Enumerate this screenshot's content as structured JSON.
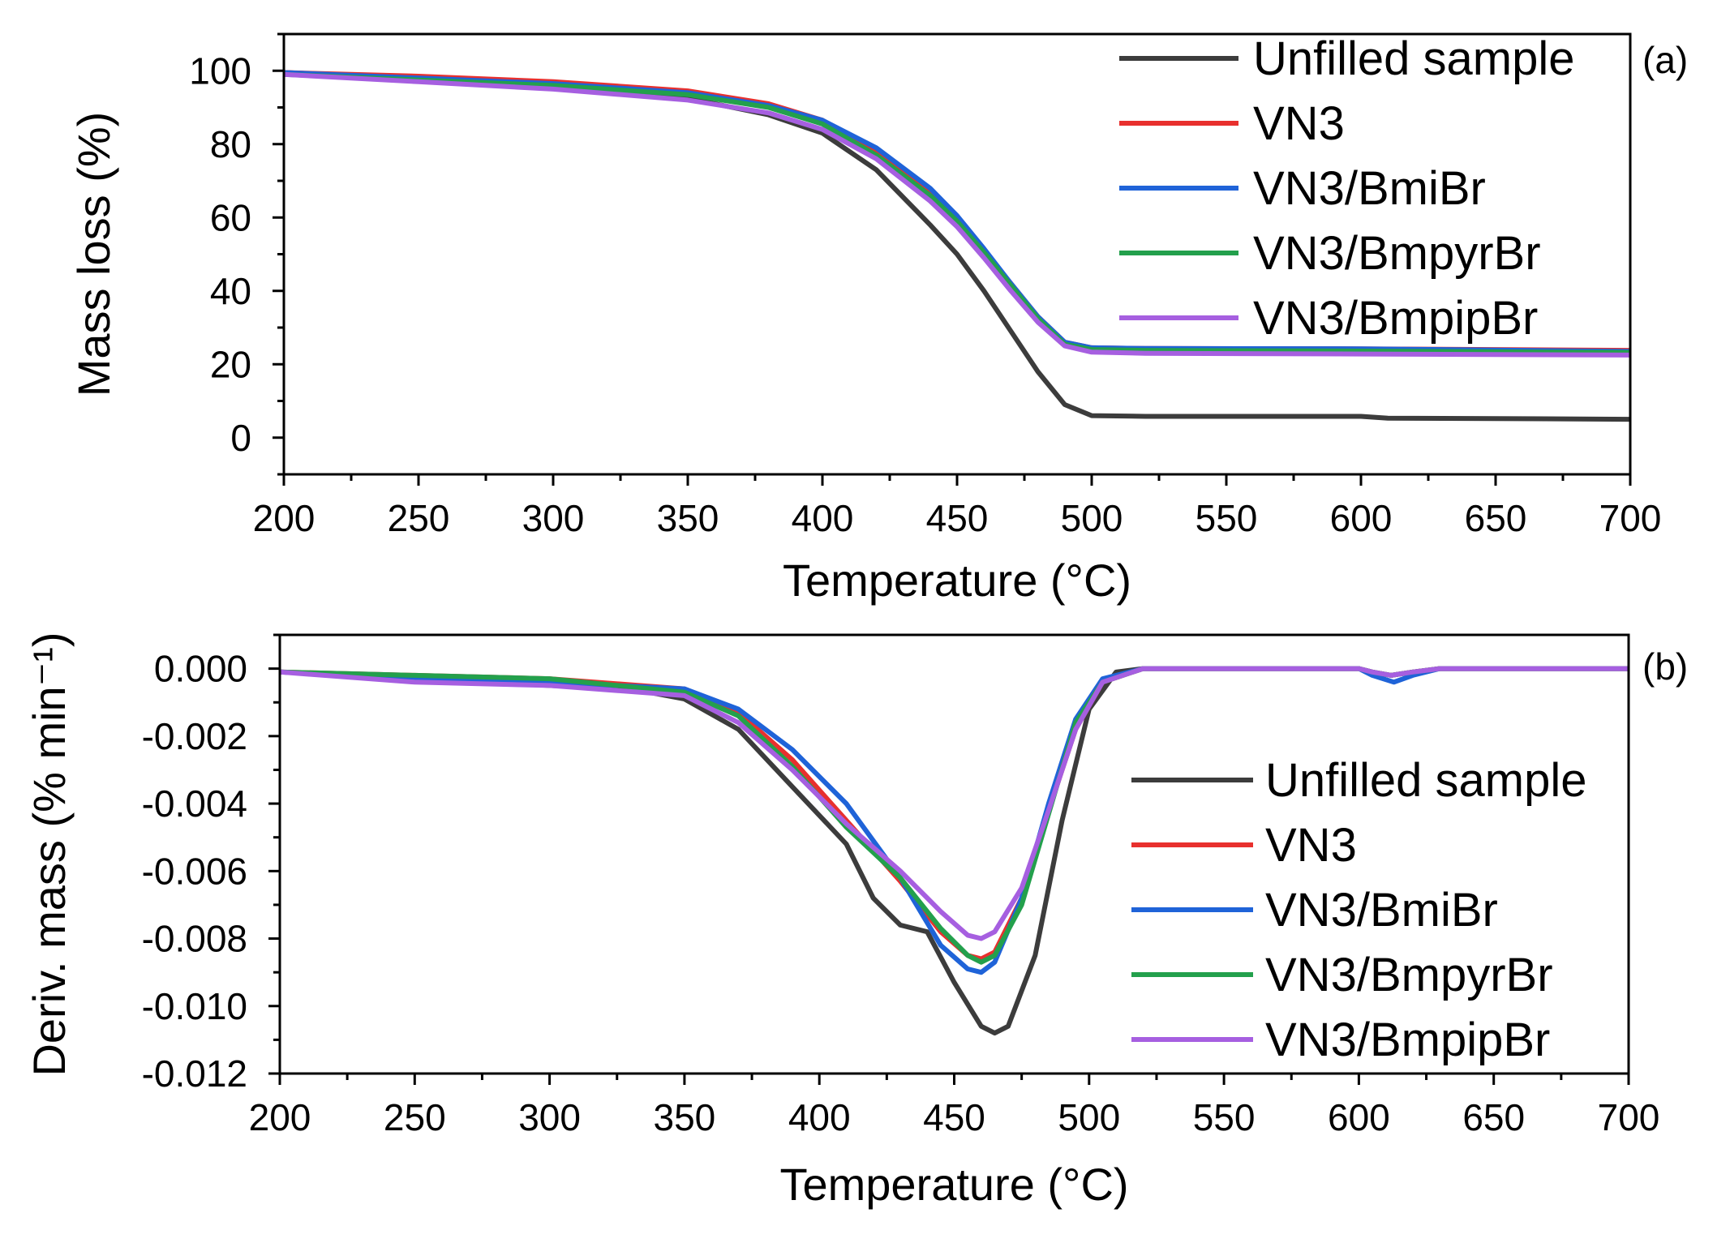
{
  "chart_data": [
    {
      "type": "line",
      "panel_label": "(a)",
      "xlabel": "Temperature (°C)",
      "ylabel": "Mass loss (%)",
      "xlim": [
        200,
        700
      ],
      "ylim": [
        -10,
        110
      ],
      "xticks": [
        200,
        250,
        300,
        350,
        400,
        450,
        500,
        550,
        600,
        650,
        700
      ],
      "yticks": [
        0,
        20,
        40,
        60,
        80,
        100
      ],
      "legend_position": "top-right",
      "series": [
        {
          "name": "Unfilled sample",
          "color": "#3c3c3c",
          "x": [
            200,
            250,
            300,
            350,
            380,
            400,
            420,
            440,
            450,
            460,
            470,
            480,
            490,
            500,
            520,
            600,
            610,
            650,
            700
          ],
          "y": [
            99.5,
            98,
            96,
            92.5,
            88,
            83,
            73,
            58,
            50,
            40,
            29,
            18,
            9,
            6,
            5.8,
            5.8,
            5.3,
            5.2,
            5
          ]
        },
        {
          "name": "VN3",
          "color": "#e8302e",
          "x": [
            200,
            250,
            300,
            350,
            380,
            400,
            420,
            440,
            450,
            460,
            470,
            480,
            490,
            500,
            520,
            600,
            700
          ],
          "y": [
            99.5,
            98.5,
            97,
            94.5,
            91,
            86.5,
            78,
            67,
            60,
            51,
            42,
            33,
            26,
            24.5,
            24.3,
            24.2,
            23.8
          ]
        },
        {
          "name": "VN3/BmiBr",
          "color": "#1f63d8",
          "x": [
            200,
            250,
            300,
            350,
            380,
            400,
            420,
            440,
            450,
            460,
            470,
            480,
            490,
            500,
            520,
            600,
            700
          ],
          "y": [
            99.5,
            98,
            96.5,
            94,
            90.5,
            86.5,
            79,
            68,
            60.5,
            51.5,
            42,
            33,
            26,
            24.5,
            24.3,
            24.2,
            23.5
          ]
        },
        {
          "name": "VN3/BmpyrBr",
          "color": "#23a04c",
          "x": [
            200,
            250,
            300,
            350,
            380,
            400,
            420,
            440,
            450,
            460,
            470,
            480,
            490,
            500,
            520,
            600,
            700
          ],
          "y": [
            99,
            97.5,
            96,
            93.5,
            90,
            85.5,
            77,
            66,
            59,
            50.5,
            41.5,
            32.5,
            25.5,
            24,
            23.8,
            23.6,
            23.2
          ]
        },
        {
          "name": "VN3/BmpipBr",
          "color": "#a65fe0",
          "x": [
            200,
            250,
            300,
            350,
            380,
            400,
            420,
            440,
            450,
            460,
            470,
            480,
            490,
            500,
            520,
            600,
            700
          ],
          "y": [
            99,
            97,
            95,
            92,
            88.5,
            84,
            76,
            64.5,
            57.5,
            49,
            40,
            31.5,
            25,
            23.3,
            23,
            22.8,
            22.5
          ]
        }
      ]
    },
    {
      "type": "line",
      "panel_label": "(b)",
      "xlabel": "Temperature (°C)",
      "ylabel": "Deriv. mass (% min⁻¹)",
      "xlim": [
        200,
        700
      ],
      "ylim": [
        -0.012,
        0.001
      ],
      "xticks": [
        200,
        250,
        300,
        350,
        400,
        450,
        500,
        550,
        600,
        650,
        700
      ],
      "yticks": [
        "0.000",
        "-0.002",
        "-0.004",
        "-0.006",
        "-0.008",
        "-0.010",
        "-0.012"
      ],
      "legend_position": "right",
      "series": [
        {
          "name": "Unfilled sample",
          "color": "#3c3c3c",
          "x": [
            200,
            250,
            300,
            330,
            350,
            370,
            390,
            410,
            420,
            430,
            440,
            450,
            460,
            465,
            470,
            480,
            490,
            500,
            510,
            520,
            600,
            605,
            612,
            620,
            630,
            700
          ],
          "y": [
            -0.0001,
            -0.0003,
            -0.0005,
            -0.0006,
            -0.0009,
            -0.0018,
            -0.0035,
            -0.0052,
            -0.0068,
            -0.0076,
            -0.0078,
            -0.0093,
            -0.0106,
            -0.0108,
            -0.0106,
            -0.0085,
            -0.0045,
            -0.0012,
            -0.0001,
            0.0,
            0.0,
            -0.0001,
            -0.0002,
            -0.0001,
            0.0,
            0.0
          ]
        },
        {
          "name": "VN3",
          "color": "#e8302e",
          "x": [
            200,
            250,
            300,
            350,
            370,
            390,
            410,
            430,
            445,
            455,
            460,
            465,
            475,
            485,
            495,
            505,
            520,
            600,
            605,
            612,
            620,
            630,
            700
          ],
          "y": [
            -0.0001,
            -0.0002,
            -0.0003,
            -0.0006,
            -0.0013,
            -0.0027,
            -0.0045,
            -0.0063,
            -0.0078,
            -0.0085,
            -0.0086,
            -0.0084,
            -0.0068,
            -0.0042,
            -0.0018,
            -0.0004,
            0.0,
            0.0,
            -0.0001,
            -0.0002,
            -0.0001,
            0.0,
            0.0
          ]
        },
        {
          "name": "VN3/BmiBr",
          "color": "#1f63d8",
          "x": [
            200,
            250,
            300,
            350,
            370,
            390,
            410,
            430,
            445,
            455,
            460,
            465,
            475,
            485,
            495,
            505,
            520,
            600,
            605,
            613,
            620,
            630,
            700
          ],
          "y": [
            -0.0001,
            -0.0003,
            -0.0004,
            -0.0006,
            -0.0012,
            -0.0024,
            -0.004,
            -0.0062,
            -0.0082,
            -0.0089,
            -0.009,
            -0.0087,
            -0.0068,
            -0.004,
            -0.0015,
            -0.0003,
            0.0,
            0.0,
            -0.0002,
            -0.0004,
            -0.0002,
            0.0,
            0.0
          ]
        },
        {
          "name": "VN3/BmpyrBr",
          "color": "#23a04c",
          "x": [
            200,
            250,
            300,
            350,
            370,
            390,
            410,
            430,
            445,
            455,
            460,
            465,
            475,
            485,
            495,
            505,
            520,
            600,
            605,
            612,
            620,
            630,
            700
          ],
          "y": [
            -0.0001,
            -0.0002,
            -0.0003,
            -0.0007,
            -0.0014,
            -0.0029,
            -0.0047,
            -0.0062,
            -0.0077,
            -0.0085,
            -0.0087,
            -0.0085,
            -0.007,
            -0.0043,
            -0.0016,
            -0.0004,
            0.0,
            0.0,
            -0.0001,
            -0.0002,
            -0.0001,
            0.0,
            0.0
          ]
        },
        {
          "name": "VN3/BmpipBr",
          "color": "#a65fe0",
          "x": [
            200,
            250,
            300,
            350,
            370,
            390,
            410,
            430,
            445,
            455,
            460,
            465,
            475,
            485,
            495,
            505,
            520,
            600,
            605,
            612,
            620,
            630,
            700
          ],
          "y": [
            -0.0001,
            -0.0004,
            -0.0005,
            -0.0008,
            -0.0016,
            -0.003,
            -0.0046,
            -0.006,
            -0.0072,
            -0.0079,
            -0.008,
            -0.0078,
            -0.0065,
            -0.0042,
            -0.0018,
            -0.0004,
            0.0,
            0.0,
            -0.0001,
            -0.0002,
            -0.0001,
            0.0,
            0.0
          ]
        }
      ]
    }
  ]
}
